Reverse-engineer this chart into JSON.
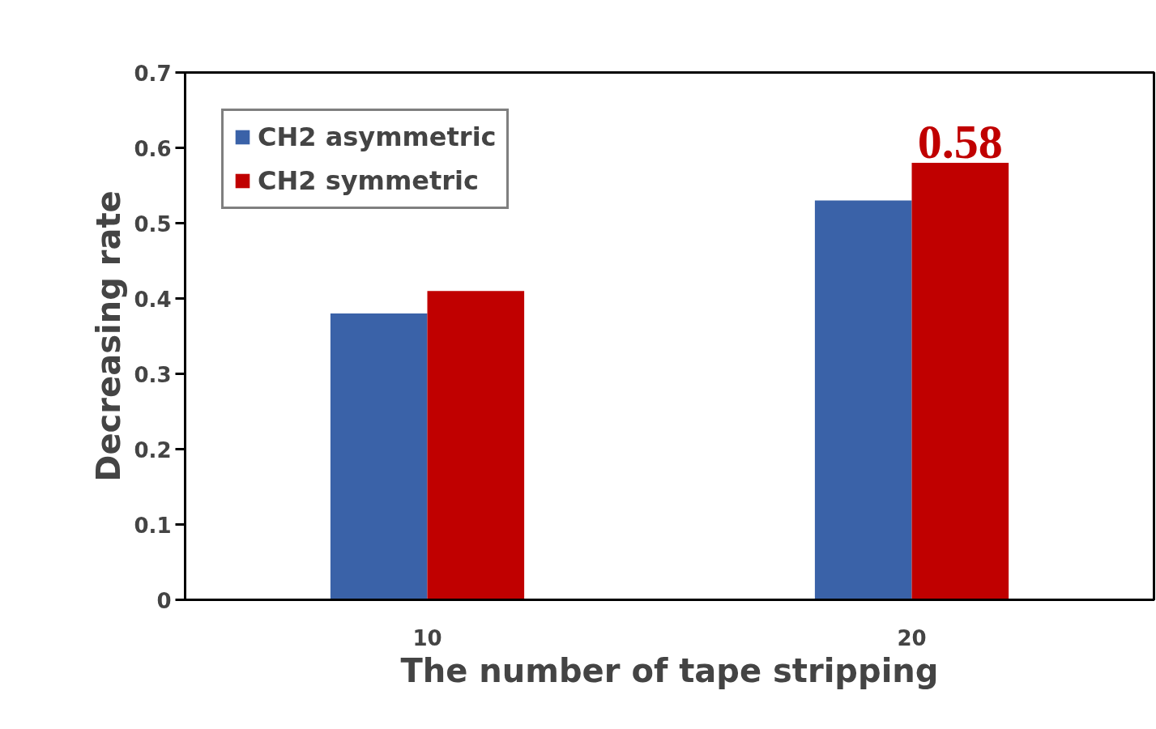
{
  "chart_data": {
    "type": "bar",
    "xlabel": "The number of tape stripping",
    "ylabel": "Decreasing rate",
    "categories": [
      "10",
      "20"
    ],
    "series": [
      {
        "name": "CH2 asymmetric",
        "color": "#3a62a8",
        "values": [
          0.38,
          0.53
        ]
      },
      {
        "name": "CH2 symmetric",
        "color": "#c00000",
        "values": [
          0.41,
          0.58
        ],
        "value_labels": [
          null,
          "0.58"
        ]
      }
    ],
    "ylim": [
      0,
      0.7
    ],
    "yticks": [
      0,
      0.1,
      0.2,
      0.3,
      0.4,
      0.5,
      0.6,
      0.7
    ],
    "grid": false,
    "legend": "top left"
  }
}
